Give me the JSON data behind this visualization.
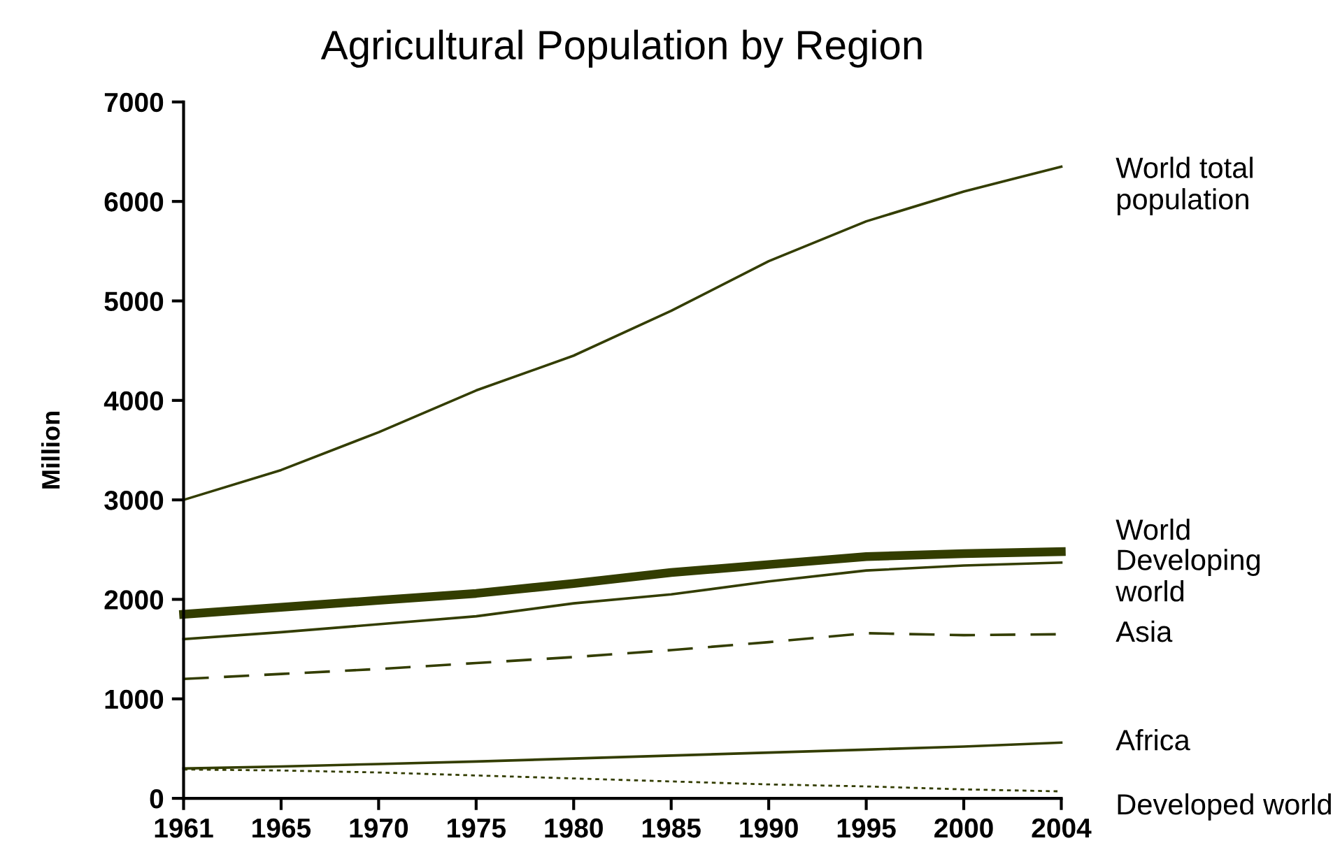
{
  "chart_data": {
    "type": "line",
    "title": "Agricultural Population by Region",
    "ylabel": "Million",
    "categories": [
      "1961",
      "1965",
      "1970",
      "1975",
      "1980",
      "1985",
      "1990",
      "1995",
      "2000",
      "2004"
    ],
    "ylim": [
      0,
      7000
    ],
    "yticks": [
      0,
      1000,
      2000,
      3000,
      4000,
      5000,
      6000,
      7000
    ],
    "grid": false,
    "legend": false,
    "marker": "none",
    "series": [
      {
        "name": "World total population",
        "color": "#333d00",
        "line_style": "solid",
        "values": [
          3000,
          3300,
          3680,
          4100,
          4450,
          4900,
          5400,
          5800,
          6100,
          6350
        ]
      },
      {
        "name": "World",
        "color": "#333d00",
        "line_style": "solid",
        "values": [
          1850,
          1920,
          1990,
          2060,
          2160,
          2270,
          2350,
          2430,
          2460,
          2480
        ]
      },
      {
        "name": "Developing world",
        "color": "#333d00",
        "line_style": "solid",
        "values": [
          1600,
          1670,
          1750,
          1830,
          1960,
          2050,
          2180,
          2290,
          2340,
          2370
        ]
      },
      {
        "name": "Asia",
        "color": "#333d00",
        "line_style": "dashed",
        "values": [
          1200,
          1250,
          1300,
          1360,
          1420,
          1490,
          1570,
          1660,
          1640,
          1650
        ]
      },
      {
        "name": "Africa",
        "color": "#333d00",
        "line_style": "solid",
        "values": [
          300,
          320,
          345,
          370,
          400,
          430,
          460,
          490,
          520,
          560
        ]
      },
      {
        "name": "Developed world",
        "color": "#333d00",
        "line_style": "dotted",
        "values": [
          290,
          280,
          260,
          230,
          200,
          170,
          140,
          120,
          90,
          70
        ]
      }
    ]
  }
}
